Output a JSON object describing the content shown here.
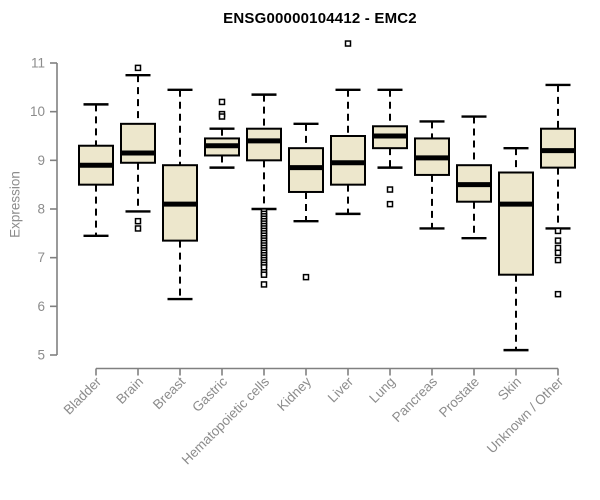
{
  "chart_data": {
    "type": "boxplot",
    "title": "ENSG00000104412 - EMC2",
    "ylabel": "Expression",
    "xlabel": "",
    "ylim": [
      5,
      11
    ],
    "yticks": [
      5,
      6,
      7,
      8,
      9,
      10,
      11
    ],
    "grid": false,
    "legend": null,
    "categories": [
      "Bladder",
      "Brain",
      "Breast",
      "Gastric",
      "Hematopoietic cells",
      "Kidney",
      "Liver",
      "Lung",
      "Pancreas",
      "Prostate",
      "Skin",
      "Unknown / Other"
    ],
    "series": [
      {
        "category": "Bladder",
        "whisker_low": 7.45,
        "q1": 8.5,
        "median": 8.9,
        "q3": 9.3,
        "whisker_high": 10.15,
        "outliers": []
      },
      {
        "category": "Brain",
        "whisker_low": 7.95,
        "q1": 8.95,
        "median": 9.15,
        "q3": 9.75,
        "whisker_high": 10.75,
        "outliers": [
          10.9,
          7.75,
          7.6
        ]
      },
      {
        "category": "Breast",
        "whisker_low": 6.15,
        "q1": 7.35,
        "median": 8.1,
        "q3": 8.9,
        "whisker_high": 10.45,
        "outliers": []
      },
      {
        "category": "Gastric",
        "whisker_low": 8.85,
        "q1": 9.1,
        "median": 9.3,
        "q3": 9.45,
        "whisker_high": 9.65,
        "outliers": [
          10.2,
          9.95,
          9.9
        ]
      },
      {
        "category": "Hematopoietic cells",
        "whisker_low": 8.0,
        "q1": 9.0,
        "median": 9.4,
        "q3": 9.65,
        "whisker_high": 10.35,
        "outliers": [
          7.95,
          7.9,
          7.85,
          7.8,
          7.75,
          7.7,
          7.65,
          7.6,
          7.55,
          7.5,
          7.45,
          7.4,
          7.35,
          7.3,
          7.25,
          7.2,
          7.15,
          7.1,
          7.05,
          7.0,
          6.95,
          6.9,
          6.85,
          6.8,
          6.7,
          6.65,
          6.45
        ]
      },
      {
        "category": "Kidney",
        "whisker_low": 7.75,
        "q1": 8.35,
        "median": 8.85,
        "q3": 9.25,
        "whisker_high": 9.75,
        "outliers": [
          6.6
        ]
      },
      {
        "category": "Liver",
        "whisker_low": 7.9,
        "q1": 8.5,
        "median": 8.95,
        "q3": 9.5,
        "whisker_high": 10.45,
        "outliers": [
          11.4
        ]
      },
      {
        "category": "Lung",
        "whisker_low": 8.85,
        "q1": 9.25,
        "median": 9.5,
        "q3": 9.7,
        "whisker_high": 10.45,
        "outliers": [
          8.4,
          8.1
        ]
      },
      {
        "category": "Pancreas",
        "whisker_low": 7.6,
        "q1": 8.7,
        "median": 9.05,
        "q3": 9.45,
        "whisker_high": 9.8,
        "outliers": []
      },
      {
        "category": "Prostate",
        "whisker_low": 7.4,
        "q1": 8.15,
        "median": 8.5,
        "q3": 8.9,
        "whisker_high": 9.9,
        "outliers": []
      },
      {
        "category": "Skin",
        "whisker_low": 5.1,
        "q1": 6.65,
        "median": 8.1,
        "q3": 8.75,
        "whisker_high": 9.25,
        "outliers": []
      },
      {
        "category": "Unknown / Other",
        "whisker_low": 7.6,
        "q1": 8.85,
        "median": 9.2,
        "q3": 9.65,
        "whisker_high": 10.55,
        "outliers": [
          7.55,
          7.35,
          7.2,
          7.1,
          6.95,
          6.25
        ]
      }
    ],
    "colors": {
      "box_fill": "#EDE7CC",
      "box_border": "#000000",
      "median": "#000000",
      "whisker": "#000000",
      "outlier_fill": "#ffffff",
      "axis": "#808080",
      "tick_label": "#8c8c8c",
      "title": "#000000"
    }
  }
}
